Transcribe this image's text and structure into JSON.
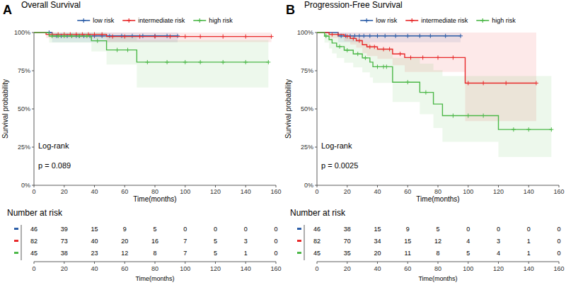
{
  "chart_data": [
    {
      "type": "step",
      "panel": "A",
      "title": "Overall Survival",
      "x_label": "Time(months)",
      "y_label": "Survival probability",
      "annotations": [
        "Log-rank",
        "p = 0.089"
      ],
      "legend": "top",
      "grid": false,
      "marker": "plus",
      "xlim": [
        0,
        160
      ],
      "xticks": [
        0,
        20,
        40,
        60,
        80,
        100,
        120,
        140,
        160
      ],
      "ylim": [
        0,
        100
      ],
      "yticks": [
        {
          "value": 0,
          "label": "0%"
        },
        {
          "value": 25,
          "label": "25%"
        },
        {
          "value": 50,
          "label": "50%"
        },
        {
          "value": 75,
          "label": "75%"
        },
        {
          "value": 100,
          "label": "100%"
        }
      ],
      "risk_table_title": "Number at risk",
      "at_risk_times": [
        0,
        20,
        40,
        60,
        80,
        100,
        120,
        140,
        160
      ],
      "series": [
        {
          "name": "low risk",
          "color": "#2c5ea8",
          "x": [
            0,
            12,
            95
          ],
          "values": [
            100,
            97.8,
            97.8
          ],
          "lower": [
            100,
            93.6,
            93.6
          ],
          "upper": [
            100,
            100,
            100
          ],
          "censored": [
            10,
            15,
            18,
            22,
            25,
            28,
            30,
            33,
            37,
            40,
            45,
            50,
            58,
            65,
            72,
            80,
            88,
            95
          ],
          "at_risk": [
            46,
            39,
            15,
            9,
            5,
            0,
            0,
            0,
            0
          ]
        },
        {
          "name": "intermediate risk",
          "color": "#e8292a",
          "x": [
            0,
            8,
            48,
            157
          ],
          "values": [
            100,
            98.8,
            97.4,
            97.4
          ],
          "lower": [
            100,
            96.4,
            93.8,
            93.8
          ],
          "upper": [
            100,
            100,
            100,
            100
          ],
          "censored": [
            12,
            16,
            20,
            24,
            28,
            32,
            36,
            40,
            45,
            52,
            60,
            70,
            80,
            90,
            100,
            110,
            125,
            140,
            157
          ],
          "at_risk": [
            82,
            73,
            40,
            20,
            16,
            7,
            5,
            3,
            0
          ]
        },
        {
          "name": "high risk",
          "color": "#4cb848",
          "x": [
            0,
            10,
            38,
            48,
            68,
            155
          ],
          "values": [
            100,
            97.7,
            94.6,
            88.6,
            80.6,
            80.6
          ],
          "lower": [
            100,
            93.4,
            87.6,
            79,
            64,
            64
          ],
          "upper": [
            100,
            100,
            100,
            98,
            95,
            95
          ],
          "censored": [
            12,
            16,
            20,
            25,
            30,
            35,
            42,
            55,
            62,
            75,
            88,
            100,
            110,
            125,
            140,
            155
          ],
          "at_risk": [
            45,
            38,
            23,
            12,
            8,
            7,
            5,
            1,
            0
          ]
        }
      ]
    },
    {
      "type": "step",
      "panel": "B",
      "title": "Progression-Free Survival",
      "x_label": "Time(months)",
      "y_label": "Survival probability",
      "annotations": [
        "Log-rank",
        "p = 0.0025"
      ],
      "legend": "top",
      "grid": false,
      "marker": "plus",
      "xlim": [
        0,
        160
      ],
      "xticks": [
        0,
        20,
        40,
        60,
        80,
        100,
        120,
        140,
        160
      ],
      "ylim": [
        0,
        100
      ],
      "yticks": [
        {
          "value": 0,
          "label": "0%"
        },
        {
          "value": 25,
          "label": "25%"
        },
        {
          "value": 50,
          "label": "50%"
        },
        {
          "value": 75,
          "label": "75%"
        },
        {
          "value": 100,
          "label": "100%"
        }
      ],
      "risk_table_title": "Number at risk",
      "at_risk_times": [
        0,
        20,
        40,
        60,
        80,
        100,
        120,
        140,
        160
      ],
      "series": [
        {
          "name": "low risk",
          "color": "#2c5ea8",
          "x": [
            0,
            14,
            95
          ],
          "values": [
            100,
            97.8,
            97.8
          ],
          "lower": [
            100,
            93.6,
            93.6
          ],
          "upper": [
            100,
            100,
            100
          ],
          "censored": [
            16,
            19,
            22,
            25,
            28,
            31,
            35,
            40,
            45,
            52,
            60,
            68,
            75,
            85,
            95
          ],
          "at_risk": [
            46,
            38,
            15,
            9,
            5,
            0,
            0,
            0,
            0
          ]
        },
        {
          "name": "intermediate risk",
          "color": "#e8292a",
          "x": [
            0,
            8,
            18,
            22,
            26,
            30,
            33,
            40,
            50,
            58,
            98,
            145
          ],
          "values": [
            100,
            98.8,
            97.5,
            96.1,
            94.7,
            92.0,
            90.6,
            89.1,
            86.0,
            83.6,
            66.9,
            66.9
          ],
          "lower": [
            100,
            96.4,
            94.2,
            92.1,
            90.0,
            86.5,
            84.6,
            82.8,
            78.6,
            74.2,
            42,
            42
          ],
          "upper": [
            100,
            100,
            100,
            100,
            100,
            100,
            100,
            100,
            100,
            100,
            100,
            100
          ],
          "censored": [
            10,
            14,
            20,
            24,
            28,
            35,
            38,
            44,
            48,
            55,
            62,
            70,
            80,
            90,
            100,
            110,
            125,
            145
          ],
          "at_risk": [
            82,
            70,
            34,
            15,
            12,
            4,
            3,
            1,
            0
          ]
        },
        {
          "name": "high risk",
          "color": "#4cb848",
          "x": [
            0,
            5,
            8,
            10,
            13,
            18,
            24,
            30,
            35,
            37,
            50,
            68,
            77,
            83,
            120,
            155
          ],
          "values": [
            100,
            97.7,
            95.4,
            93.1,
            90.8,
            88.4,
            86.0,
            83.4,
            80.6,
            77.6,
            67.5,
            60.8,
            53.2,
            45.6,
            36.5,
            36.5
          ],
          "lower": [
            100,
            93.4,
            89.6,
            86.4,
            83.3,
            80.2,
            77.2,
            74.0,
            70.6,
            67.0,
            54.5,
            46.5,
            37.5,
            28.5,
            18.5,
            18.5
          ],
          "upper": [
            100,
            100,
            100,
            100,
            99.2,
            97.3,
            95.7,
            93.8,
            91.8,
            89.6,
            83.5,
            79.6,
            75.4,
            71.5,
            71.5,
            71.5
          ],
          "censored": [
            6,
            15,
            20,
            27,
            32,
            40,
            44,
            46,
            60,
            72,
            90,
            100,
            110,
            130,
            140,
            155
          ],
          "at_risk": [
            45,
            35,
            20,
            11,
            8,
            5,
            4,
            1,
            0
          ]
        }
      ]
    }
  ]
}
